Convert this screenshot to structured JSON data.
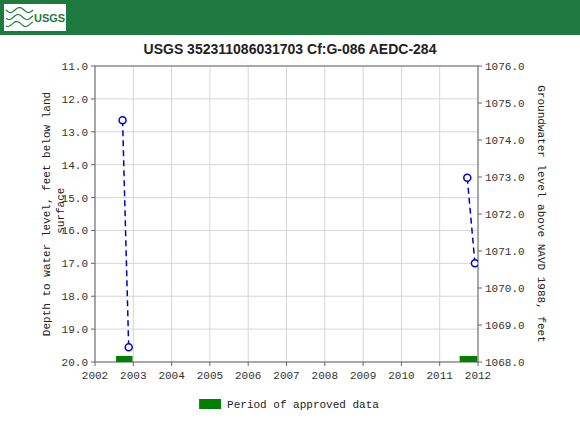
{
  "chart_data": {
    "type": "line",
    "title": "USGS 352311086031703 Cf:G-086  AEDC-284",
    "annotations": [
      "USGS"
    ],
    "y_label": "Depth to water level, feet below land\n surface",
    "y2_label": "Groundwater level above NAVD 1988, feet",
    "xlim": [
      2002,
      2012
    ],
    "xticks": [
      2002,
      2003,
      2004,
      2005,
      2006,
      2007,
      2008,
      2009,
      2010,
      2011,
      2012
    ],
    "ylim": [
      20.0,
      11.0
    ],
    "yticks": [
      {
        "value": 11.0,
        "label": "11.0"
      },
      {
        "value": 12.0,
        "label": "12.0"
      },
      {
        "value": 13.0,
        "label": "13.0"
      },
      {
        "value": 14.0,
        "label": "14.0"
      },
      {
        "value": 15.0,
        "label": "15.0"
      },
      {
        "value": 16.0,
        "label": "16.0"
      },
      {
        "value": 17.0,
        "label": "17.0"
      },
      {
        "value": 18.0,
        "label": "18.0"
      },
      {
        "value": 19.0,
        "label": "19.0"
      },
      {
        "value": 20.0,
        "label": "20.0"
      }
    ],
    "y2lim": [
      1068.0,
      1076.0
    ],
    "y2ticks": [
      {
        "value": 1076.0,
        "label": "1076.0"
      },
      {
        "value": 1075.0,
        "label": "1075.0"
      },
      {
        "value": 1074.0,
        "label": "1074.0"
      },
      {
        "value": 1073.0,
        "label": "1073.0"
      },
      {
        "value": 1072.0,
        "label": "1072.0"
      },
      {
        "value": 1071.0,
        "label": "1071.0"
      },
      {
        "value": 1070.0,
        "label": "1070.0"
      },
      {
        "value": 1069.0,
        "label": "1069.0"
      },
      {
        "value": 1068.0,
        "label": "1068.0"
      }
    ],
    "grid": true,
    "legend": "bottom",
    "series": [
      {
        "type": "line",
        "color": "#0000cc",
        "marker": "circle",
        "line_style": "dashed",
        "x": [
          2002.72,
          2002.88
        ],
        "values": [
          12.65,
          19.55
        ]
      },
      {
        "type": "line",
        "color": "#0000cc",
        "marker": "circle",
        "line_style": "dashed",
        "x": [
          2011.72,
          2011.92
        ],
        "values": [
          14.4,
          17.0
        ]
      },
      {
        "type": "span",
        "name": "Period of approved data",
        "color": "#008000",
        "x_start": [
          2002.55,
          2011.52
        ],
        "x_end": [
          2002.98,
          2011.98
        ],
        "values": [
          20.0,
          20.0
        ]
      }
    ]
  }
}
